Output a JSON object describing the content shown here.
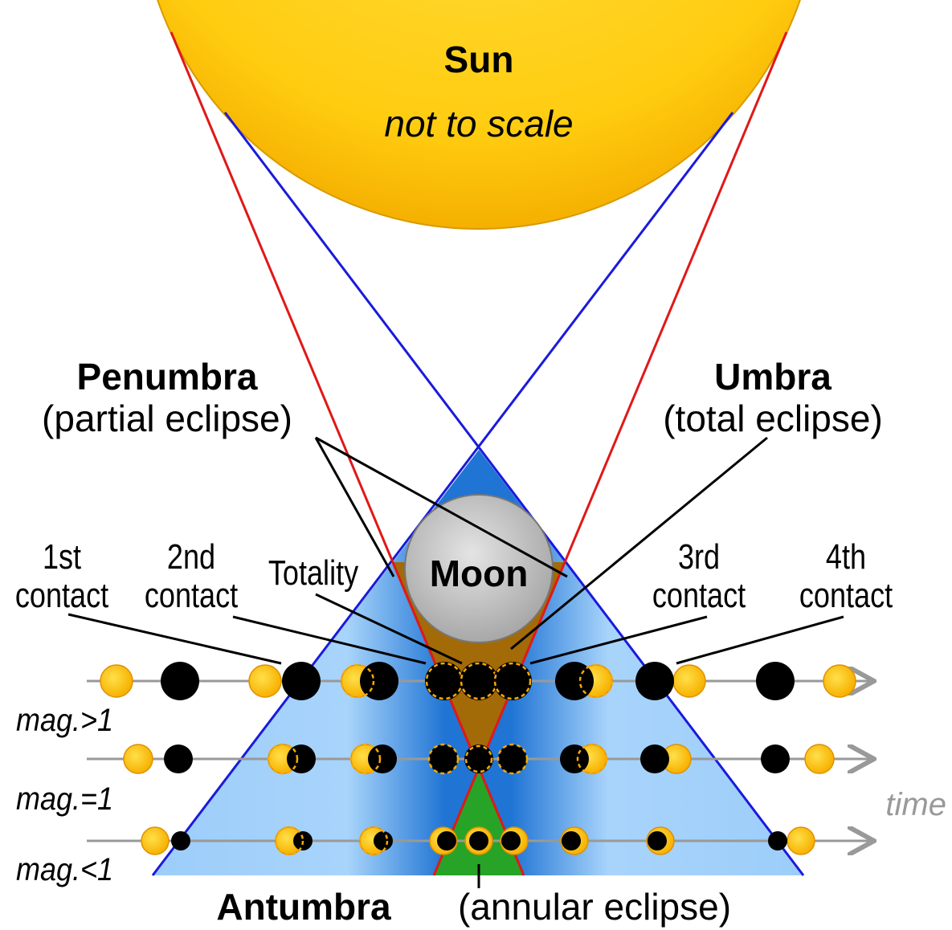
{
  "sun": {
    "label": "Sun",
    "note": "not to scale"
  },
  "penumbra": {
    "title": "Penumbra",
    "subtitle": "(partial eclipse)"
  },
  "umbra": {
    "title": "Umbra",
    "subtitle": "(total eclipse)"
  },
  "contacts": [
    {
      "line1": "1st",
      "line2": "contact"
    },
    {
      "line1": "2nd",
      "line2": "contact"
    },
    {
      "line1": "3rd",
      "line2": "contact"
    },
    {
      "line1": "4th",
      "line2": "contact"
    }
  ],
  "totality": "Totality",
  "moon": "Moon",
  "rows": [
    "mag.>1",
    "mag.=1",
    "mag.<1"
  ],
  "time": "time",
  "antumbra": {
    "title": "Antumbra",
    "subtitle": "(annular eclipse)"
  }
}
